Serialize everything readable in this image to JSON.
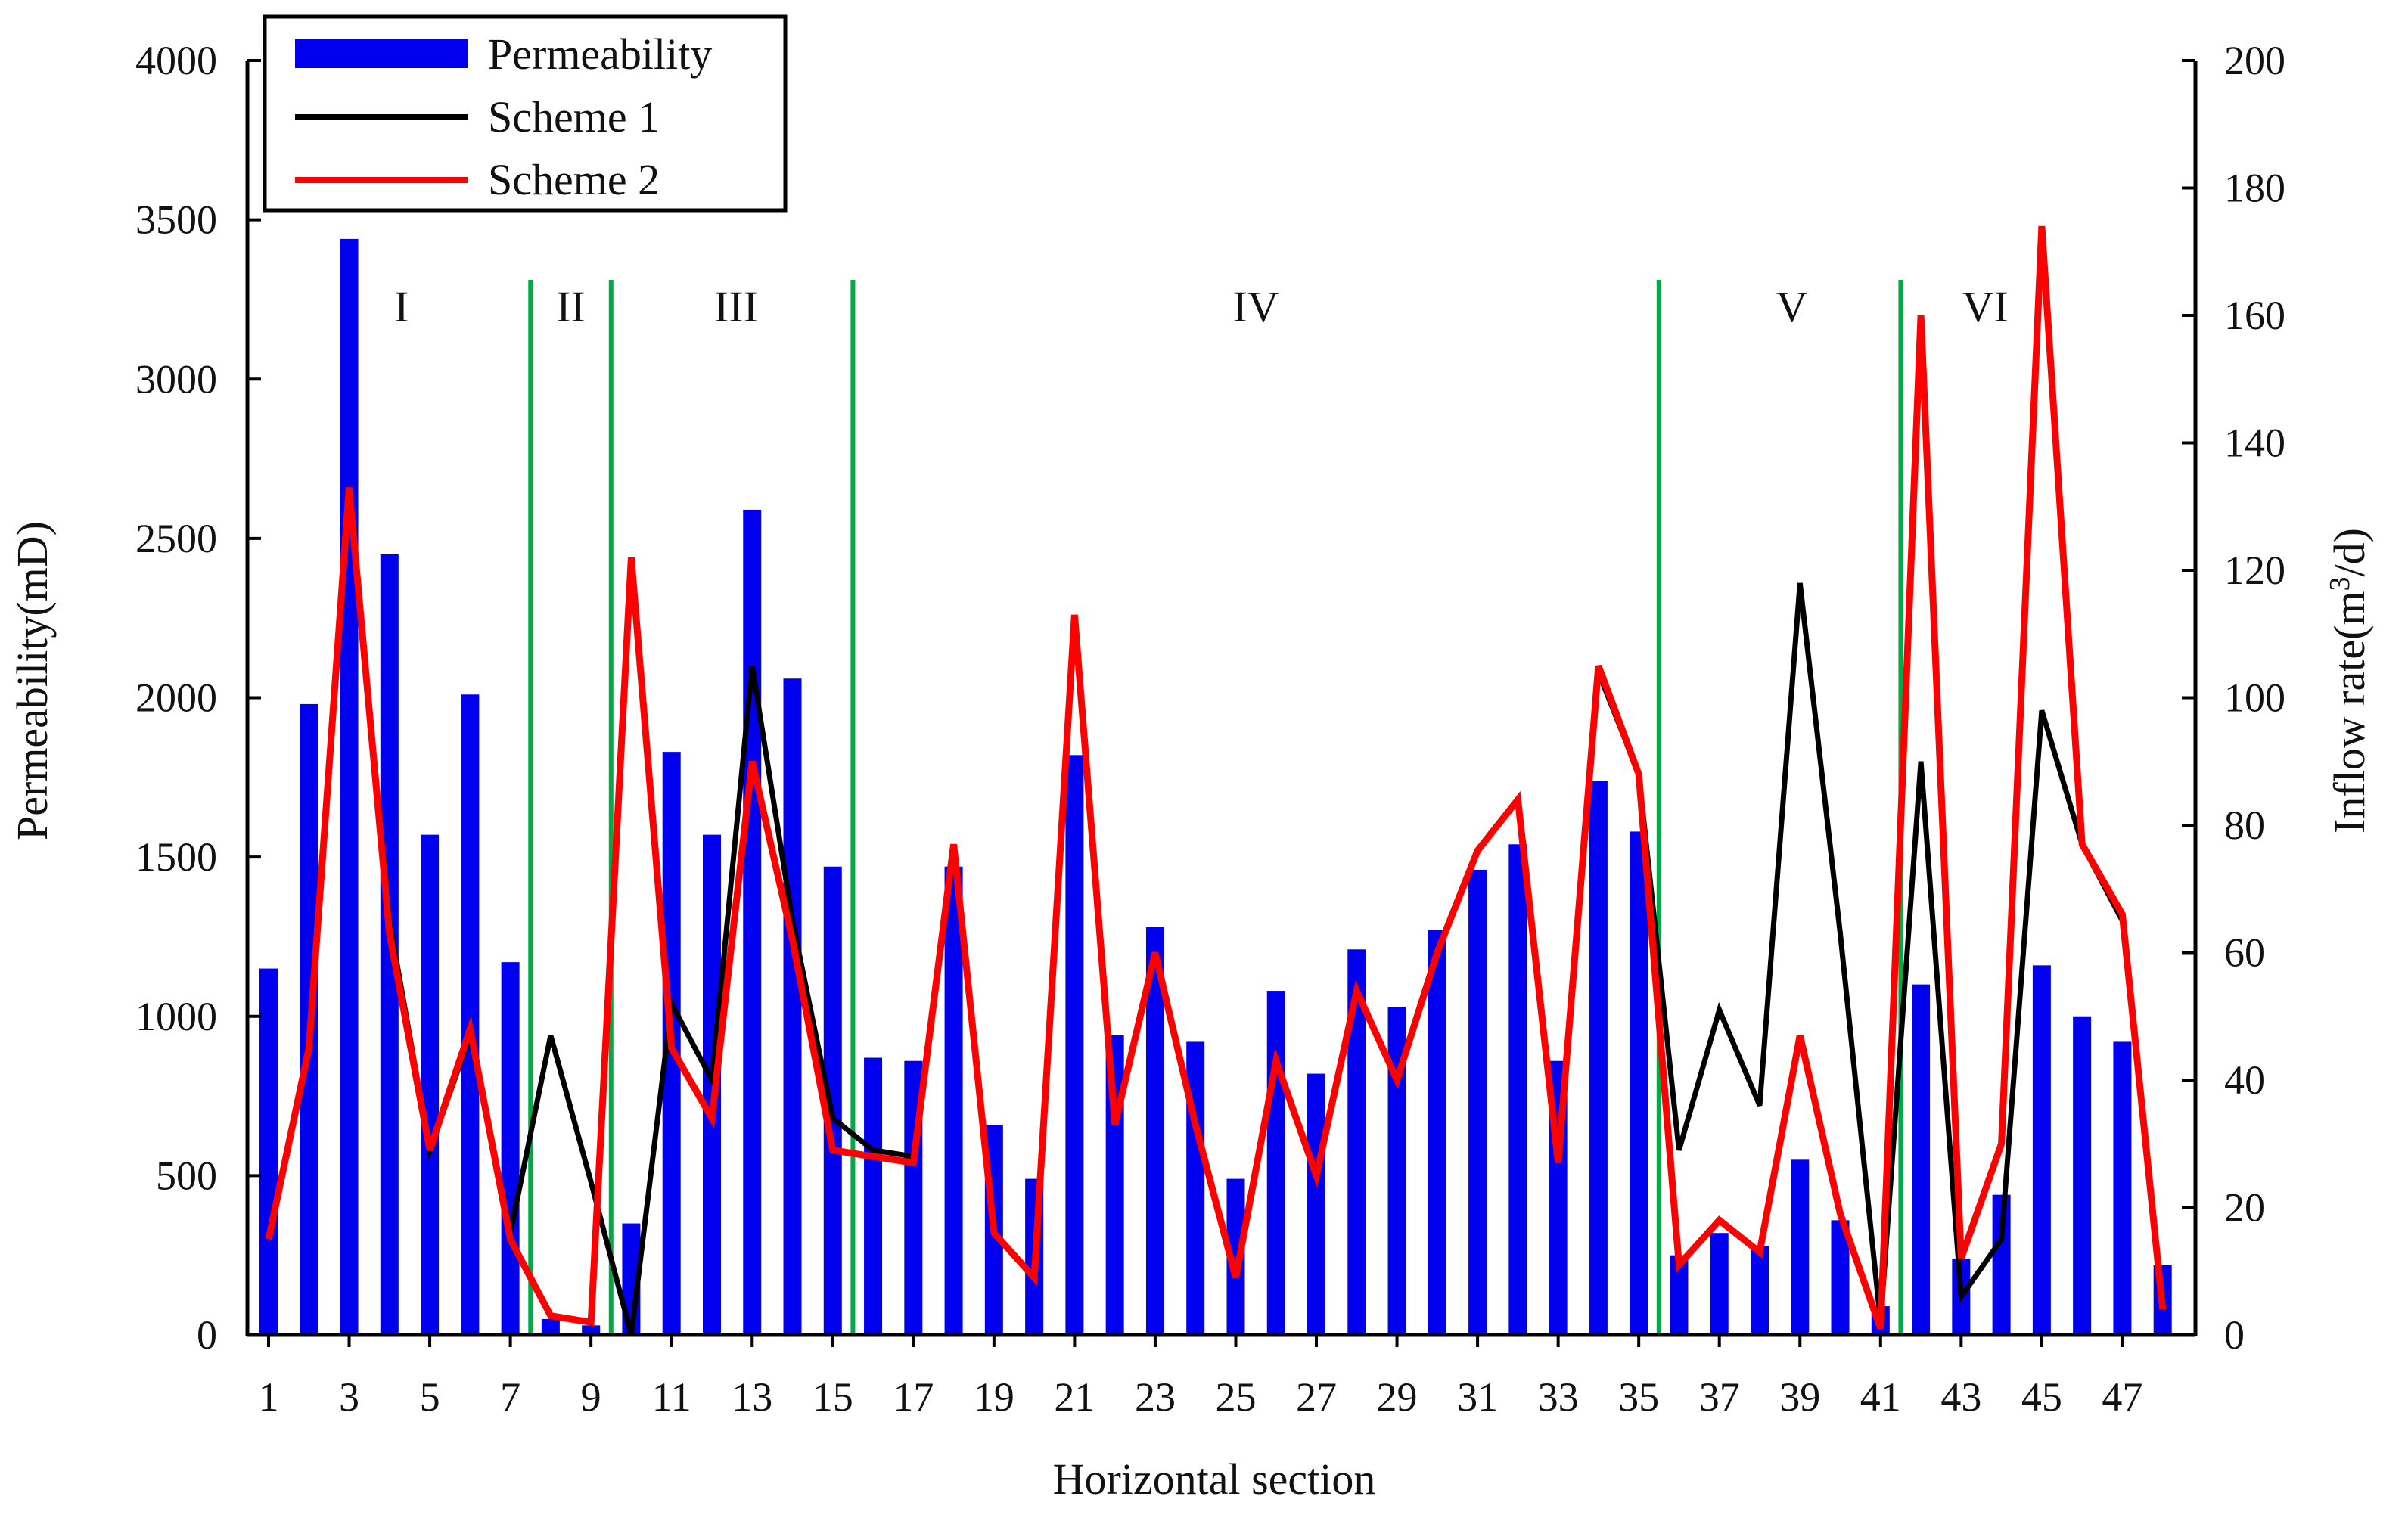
{
  "chart_data": {
    "type": "bar+line",
    "xlabel": "Horizontal section",
    "ylabel_left": "Permeability(mD)",
    "ylabel_right": "Inflow rate(m3/d)",
    "ylabel_right_base": "Inflow rate(m",
    "ylabel_right_sup": "3",
    "ylabel_right_tail": "/d)",
    "y_left_lim": [
      0,
      4000
    ],
    "y_left_ticks": [
      0,
      500,
      1000,
      1500,
      2000,
      2500,
      3000,
      3500,
      4000
    ],
    "y_right_lim": [
      0,
      200
    ],
    "y_right_ticks": [
      0,
      20,
      40,
      60,
      80,
      100,
      120,
      140,
      160,
      180,
      200
    ],
    "x_tick_labels": [
      1,
      3,
      5,
      7,
      9,
      11,
      13,
      15,
      17,
      19,
      21,
      23,
      25,
      27,
      29,
      31,
      33,
      35,
      37,
      39,
      41,
      43,
      45,
      47
    ],
    "sections": [
      1,
      2,
      3,
      4,
      5,
      6,
      7,
      8,
      9,
      10,
      11,
      12,
      13,
      14,
      15,
      16,
      17,
      18,
      19,
      20,
      21,
      22,
      23,
      24,
      25,
      26,
      27,
      28,
      29,
      30,
      31,
      32,
      33,
      34,
      35,
      36,
      37,
      38,
      39,
      40,
      41,
      42,
      43,
      44,
      45,
      46,
      47,
      48
    ],
    "legend": [
      {
        "label": "Permeability",
        "kind": "bar",
        "color": "#0000ee"
      },
      {
        "label": "Scheme 1",
        "kind": "line",
        "color": "#000000"
      },
      {
        "label": "Scheme 2",
        "kind": "line",
        "color": "#ff0000"
      }
    ],
    "series": [
      {
        "name": "Permeability",
        "axis": "left",
        "kind": "bar",
        "color": "#0000ee",
        "values": [
          1150,
          1980,
          3440,
          2450,
          1570,
          2010,
          1170,
          50,
          30,
          350,
          1830,
          1570,
          2590,
          2060,
          1470,
          870,
          860,
          1470,
          660,
          490,
          1820,
          940,
          1280,
          920,
          490,
          1080,
          820,
          1210,
          1030,
          1270,
          1460,
          1540,
          860,
          1740,
          1580,
          250,
          320,
          280,
          550,
          360,
          90,
          1100,
          240,
          440,
          1160,
          1000,
          920,
          220
        ]
      },
      {
        "name": "Scheme 1",
        "axis": "right",
        "kind": "line",
        "color": "#000000",
        "values": [
          15,
          45,
          132,
          65,
          29,
          47,
          16,
          47,
          24,
          0,
          52,
          40,
          105,
          65,
          34,
          29,
          28,
          77,
          16,
          9,
          113,
          33,
          60,
          33,
          9,
          43,
          25,
          54,
          40,
          60,
          76,
          84,
          27,
          104,
          88,
          29,
          51,
          36,
          118,
          63,
          2,
          90,
          6,
          15,
          98,
          77,
          65,
          4
        ]
      },
      {
        "name": "Scheme 2",
        "axis": "right",
        "kind": "line",
        "color": "#ff0000",
        "values": [
          15,
          45,
          133,
          63,
          29,
          48,
          15,
          3,
          2,
          122,
          45,
          34,
          90,
          62,
          29,
          28,
          27,
          77,
          16,
          9,
          113,
          33,
          60,
          33,
          9,
          43,
          25,
          54,
          40,
          60,
          76,
          84,
          27,
          105,
          88,
          11,
          18,
          13,
          47,
          19,
          1,
          160,
          12,
          30,
          174,
          77,
          66,
          4
        ]
      }
    ],
    "zones": [
      {
        "label": "I",
        "center_section": 4.3
      },
      {
        "label": "II",
        "center_section": 8.5
      },
      {
        "label": "III",
        "center_section": 12.6
      },
      {
        "label": "IV",
        "center_section": 25.5
      },
      {
        "label": "V",
        "center_section": 38.8
      },
      {
        "label": "VI",
        "center_section": 43.6
      }
    ],
    "zone_boundaries": [
      7.5,
      9.5,
      15.5,
      35.5,
      41.5
    ],
    "boundary_color": "#00aa44"
  }
}
